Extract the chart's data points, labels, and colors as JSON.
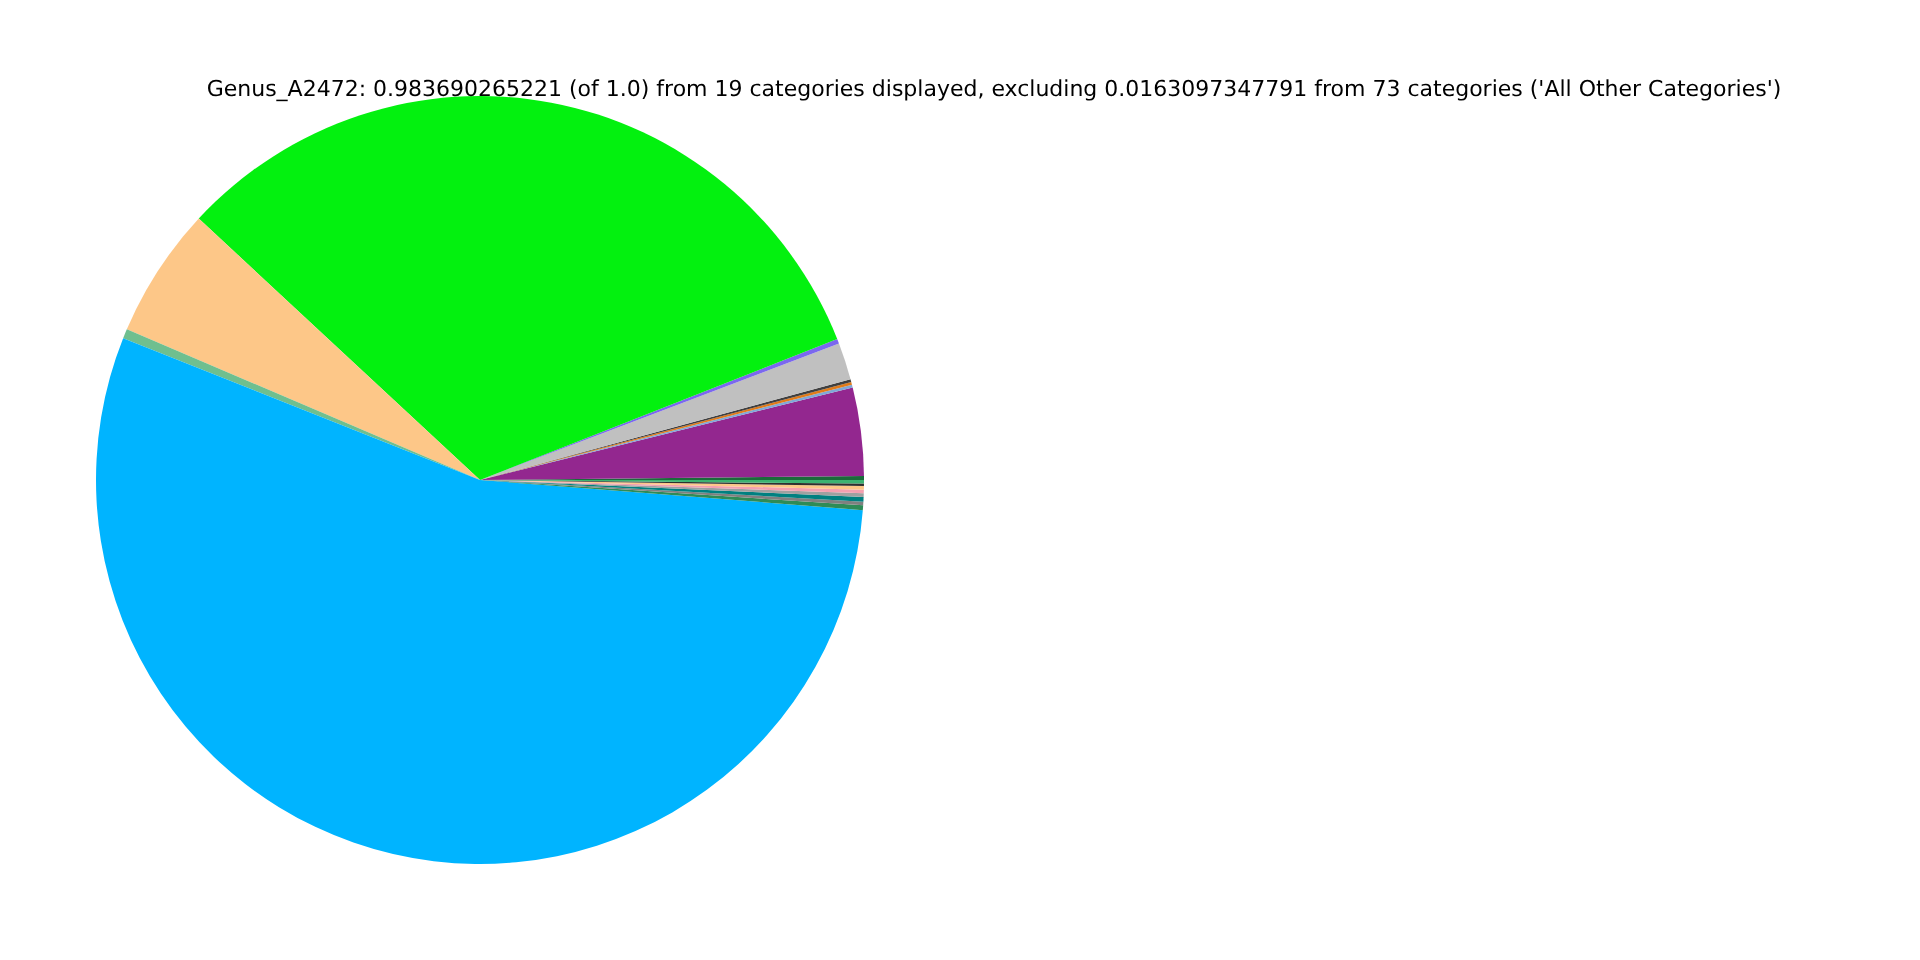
{
  "chart_data": {
    "type": "pie",
    "title": "Genus_A2472: 0.983690265221 (of 1.0) from 19 categories displayed, excluding 0.0163097347791 from 73 categories ('All Other Categories')",
    "categories": [
      null,
      null,
      null,
      null,
      null,
      null,
      null,
      null,
      null,
      null,
      null,
      null,
      null,
      null,
      null,
      null,
      null,
      null,
      null
    ],
    "values": [
      0.17,
      3.7,
      0.12,
      0.12,
      0.12,
      1.55,
      0.2,
      32.1,
      5.5,
      0.4,
      54.77,
      0.2,
      0.15,
      0.2,
      0.15,
      0.15,
      0.15,
      0.1,
      0.15
    ],
    "colors": [
      "#1a6b3a",
      "#93278f",
      "#7fa8d8",
      "#e07b1a",
      "#404040",
      "#c0c0c0",
      "#7b68ee",
      "#03f10f",
      "#fdc788",
      "#6fbf8f",
      "#00b4ff",
      "#2e8b57",
      "#808080",
      "#008080",
      "#a0a0a0",
      "#f4a0b0",
      "#fdc788",
      "#303030",
      "#3cb371"
    ]
  }
}
